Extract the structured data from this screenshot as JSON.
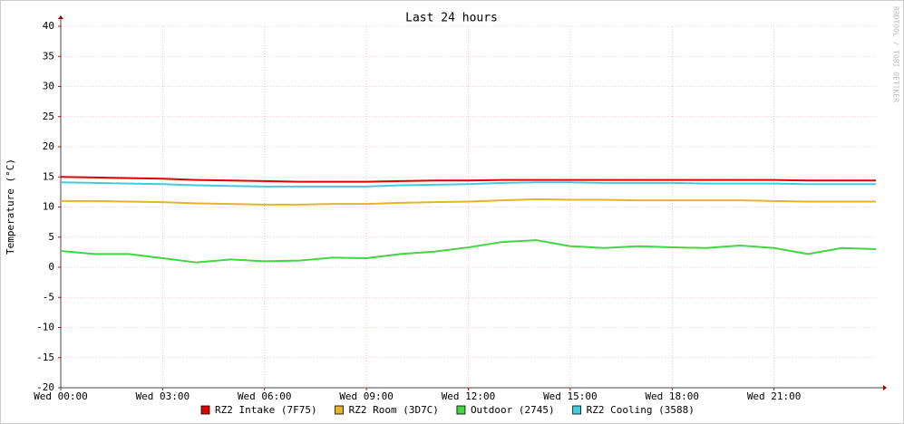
{
  "chart_data": {
    "type": "line",
    "title": "Last 24 hours",
    "y_label": "Temperature (°C)",
    "side_text": "RRDTOOL / TOBI OETIKER",
    "x": [
      0,
      1,
      2,
      3,
      4,
      5,
      6,
      7,
      8,
      9,
      10,
      11,
      12,
      13,
      14,
      15,
      16,
      17,
      18,
      19,
      20,
      21,
      22,
      23,
      24
    ],
    "xlim": [
      0,
      24
    ],
    "xticks": [
      {
        "value": 0,
        "label": "Wed 00:00"
      },
      {
        "value": 3,
        "label": "Wed 03:00"
      },
      {
        "value": 6,
        "label": "Wed 06:00"
      },
      {
        "value": 9,
        "label": "Wed 09:00"
      },
      {
        "value": 12,
        "label": "Wed 12:00"
      },
      {
        "value": 15,
        "label": "Wed 15:00"
      },
      {
        "value": 18,
        "label": "Wed 18:00"
      },
      {
        "value": 21,
        "label": "Wed 21:00"
      }
    ],
    "ylim": [
      -20,
      40
    ],
    "yticks": [
      -20,
      -15,
      -10,
      -5,
      0,
      5,
      10,
      15,
      20,
      25,
      30,
      35,
      40
    ],
    "grid": true,
    "series": [
      {
        "name": "RZ2 Intake (7F75)",
        "color": "#e00000",
        "values": [
          15.0,
          14.9,
          14.8,
          14.7,
          14.5,
          14.4,
          14.3,
          14.2,
          14.2,
          14.2,
          14.3,
          14.4,
          14.4,
          14.5,
          14.5,
          14.5,
          14.5,
          14.5,
          14.5,
          14.5,
          14.5,
          14.5,
          14.4,
          14.4,
          14.4
        ]
      },
      {
        "name": "RZ2 Room (3D7C)",
        "color": "#e4b42a",
        "values": [
          11.0,
          11.0,
          10.9,
          10.8,
          10.6,
          10.5,
          10.4,
          10.4,
          10.5,
          10.5,
          10.7,
          10.8,
          10.9,
          11.1,
          11.3,
          11.2,
          11.2,
          11.1,
          11.1,
          11.1,
          11.1,
          11.0,
          10.9,
          10.9,
          10.9
        ]
      },
      {
        "name": "Outdoor (2745)",
        "color": "#44d444",
        "values": [
          2.7,
          2.2,
          2.2,
          1.5,
          0.8,
          1.3,
          1.0,
          1.1,
          1.6,
          1.5,
          2.2,
          2.6,
          3.3,
          4.2,
          4.5,
          3.5,
          3.2,
          3.5,
          3.3,
          3.2,
          3.6,
          3.2,
          2.2,
          3.2,
          3.0
        ]
      },
      {
        "name": "RZ2 Cooling (3588)",
        "color": "#44ccdd",
        "values": [
          14.1,
          14.0,
          13.9,
          13.8,
          13.6,
          13.5,
          13.4,
          13.4,
          13.4,
          13.4,
          13.6,
          13.7,
          13.8,
          14.0,
          14.1,
          14.1,
          14.0,
          14.0,
          14.0,
          13.9,
          13.9,
          13.9,
          13.8,
          13.8,
          13.8
        ]
      }
    ]
  }
}
